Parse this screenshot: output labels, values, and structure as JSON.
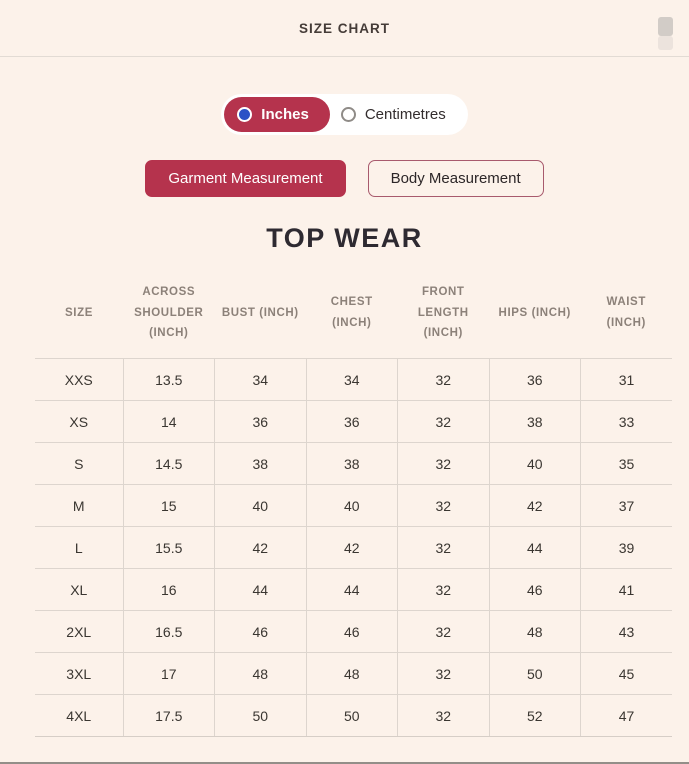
{
  "header": {
    "title": "SIZE CHART"
  },
  "unit_toggle": {
    "options": [
      {
        "label": "Inches",
        "selected": true
      },
      {
        "label": "Centimetres",
        "selected": false
      }
    ]
  },
  "measurement_tabs": [
    {
      "label": "Garment Measurement",
      "active": true
    },
    {
      "label": "Body Measurement",
      "active": false
    }
  ],
  "section_title": "TOP WEAR",
  "table": {
    "columns": [
      "SIZE",
      "ACROSS SHOULDER (INCH)",
      "BUST (INCH)",
      "CHEST (INCH)",
      "FRONT LENGTH (INCH)",
      "HIPS (INCH)",
      "WAIST (INCH)"
    ],
    "rows": [
      [
        "XXS",
        "13.5",
        "34",
        "34",
        "32",
        "36",
        "31"
      ],
      [
        "XS",
        "14",
        "36",
        "36",
        "32",
        "38",
        "33"
      ],
      [
        "S",
        "14.5",
        "38",
        "38",
        "32",
        "40",
        "35"
      ],
      [
        "M",
        "15",
        "40",
        "40",
        "32",
        "42",
        "37"
      ],
      [
        "L",
        "15.5",
        "42",
        "42",
        "32",
        "44",
        "39"
      ],
      [
        "XL",
        "16",
        "44",
        "44",
        "32",
        "46",
        "41"
      ],
      [
        "2XL",
        "16.5",
        "46",
        "46",
        "32",
        "48",
        "43"
      ],
      [
        "3XL",
        "17",
        "48",
        "48",
        "32",
        "50",
        "45"
      ],
      [
        "4XL",
        "17.5",
        "50",
        "50",
        "32",
        "52",
        "47"
      ]
    ]
  },
  "colors": {
    "accent": "#b5334d",
    "background": "#fcf2ea",
    "radio_selected_dot": "#2b52c6",
    "table_border": "#ddd5ce",
    "header_text": "#8c8179"
  }
}
